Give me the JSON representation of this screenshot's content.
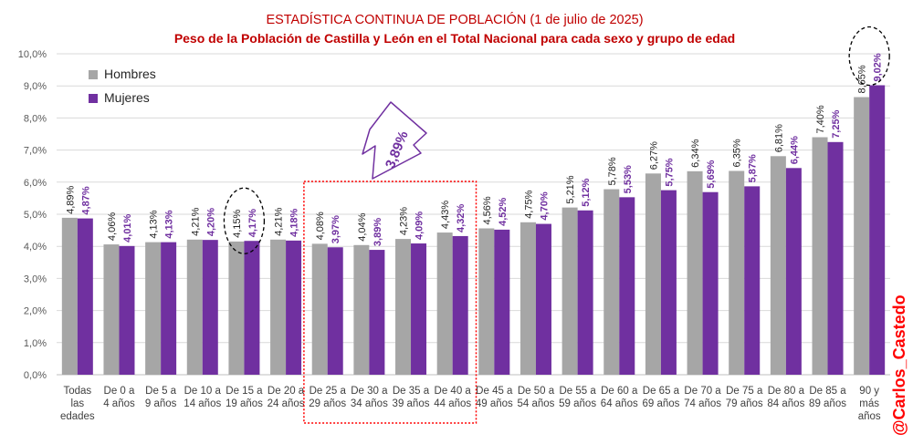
{
  "chart_data": {
    "type": "bar",
    "title": "ESTADÍSTICA CONTINUA DE POBLACIÓN (1 de julio de 2025)",
    "subtitle": "Peso de la Población de Castilla y León en el Total Nacional para cada sexo y grupo de edad",
    "ylim": [
      0,
      10
    ],
    "ytick_labels": [
      "0,0%",
      "1,0%",
      "2,0%",
      "3,0%",
      "4,0%",
      "5,0%",
      "6,0%",
      "7,0%",
      "8,0%",
      "9,0%",
      "10,0%"
    ],
    "grid": true,
    "legend_position": "top-left",
    "categories": [
      [
        "Todas",
        "las",
        "edades"
      ],
      [
        "De 0 a",
        "4 años"
      ],
      [
        "De 5 a",
        "9 años"
      ],
      [
        "De 10 a",
        "14 años"
      ],
      [
        "De 15 a",
        "19 años"
      ],
      [
        "De 20 a",
        "24 años"
      ],
      [
        "De 25 a",
        "29 años"
      ],
      [
        "De 30 a",
        "34 años"
      ],
      [
        "De 35 a",
        "39 años"
      ],
      [
        "De 40 a",
        "44 años"
      ],
      [
        "De 45 a",
        "49 años"
      ],
      [
        "De 50 a",
        "54 años"
      ],
      [
        "De 55 a",
        "59 años"
      ],
      [
        "De 60 a",
        "64 años"
      ],
      [
        "De 65 a",
        "69 años"
      ],
      [
        "De 70 a",
        "74 años"
      ],
      [
        "De 75 a",
        "79 años"
      ],
      [
        "De 80 a",
        "84 años"
      ],
      [
        "De 85 a",
        "89 años"
      ],
      [
        "90 y",
        "más",
        "años"
      ]
    ],
    "series": [
      {
        "name": "Hombres",
        "color": "#a6a6a6",
        "label_color": "#222222",
        "values": [
          4.89,
          4.06,
          4.13,
          4.21,
          4.15,
          4.21,
          4.08,
          4.04,
          4.23,
          4.43,
          4.56,
          4.75,
          5.21,
          5.78,
          6.27,
          6.34,
          6.35,
          6.81,
          7.4,
          8.65
        ],
        "labels": [
          "4,89%",
          "4,06%",
          "4,13%",
          "4,21%",
          "4,15%",
          "4,21%",
          "4,08%",
          "4,04%",
          "4,23%",
          "4,43%",
          "4,56%",
          "4,75%",
          "5,21%",
          "5,78%",
          "6,27%",
          "6,34%",
          "6,35%",
          "6,81%",
          "7,40%",
          "8,65%"
        ]
      },
      {
        "name": "Mujeres",
        "color": "#7030a0",
        "label_color": "#7030a0",
        "values": [
          4.87,
          4.01,
          4.13,
          4.2,
          4.17,
          4.18,
          3.97,
          3.89,
          4.09,
          4.32,
          4.52,
          4.7,
          5.12,
          5.53,
          5.75,
          5.69,
          5.87,
          6.44,
          7.25,
          9.02
        ],
        "labels": [
          "4,87%",
          "4,01%",
          "4,13%",
          "4,20%",
          "4,17%",
          "4,18%",
          "3,97%",
          "3,89%",
          "4,09%",
          "4,32%",
          "4,52%",
          "4,70%",
          "5,12%",
          "5,53%",
          "5,75%",
          "5,69%",
          "5,87%",
          "6,44%",
          "7,25%",
          "9,02%"
        ]
      }
    ],
    "annotations": {
      "callout_text": "3,89%",
      "callout_color": "#7030a0",
      "highlight_box_categories": [
        6,
        9
      ],
      "highlight_box_color": "#ff0000",
      "circled_categories": [
        4,
        19
      ]
    },
    "watermark": "@Carlos_Castedo",
    "watermark_color": "#ff0000"
  }
}
